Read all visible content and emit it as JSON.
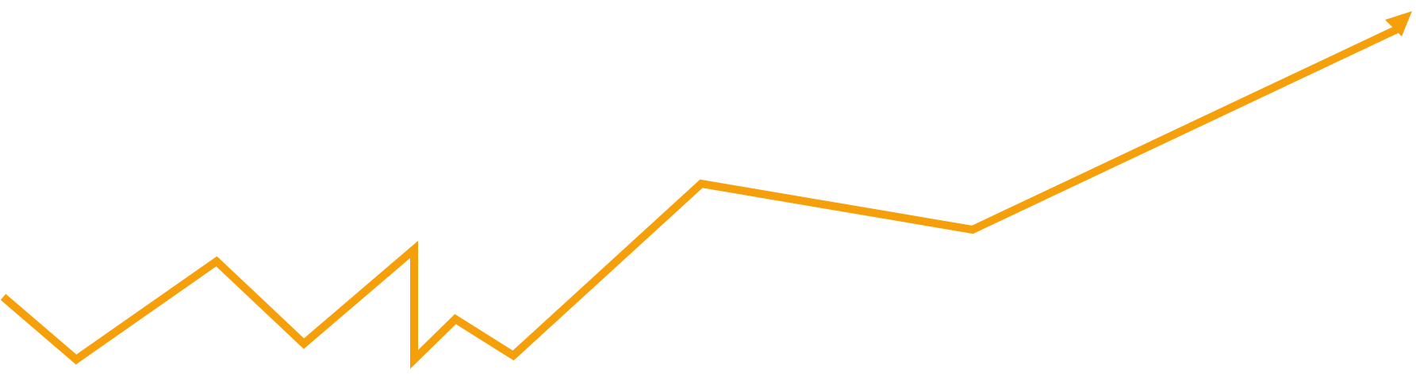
{
  "graphic": {
    "stroke_color": "#F5A00A",
    "background_color": "#FFFFFF",
    "arrowhead_icon": "arrow-up-right-icon"
  }
}
